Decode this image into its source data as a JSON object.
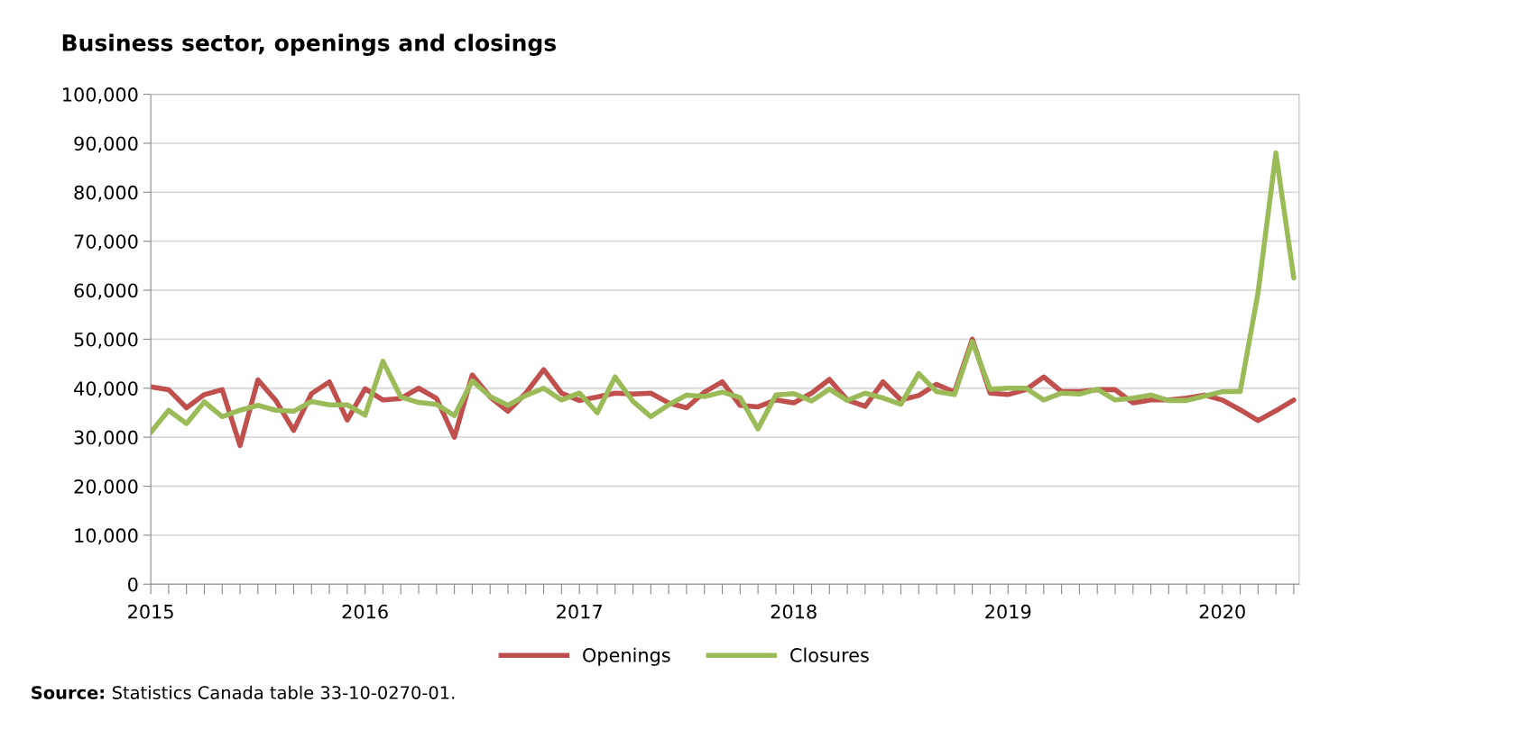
{
  "chart_data": {
    "type": "line",
    "title": "Business sector, openings and closings",
    "categories": [
      "2015",
      null,
      null,
      null,
      null,
      null,
      null,
      null,
      null,
      null,
      null,
      null,
      "2016",
      null,
      null,
      null,
      null,
      null,
      null,
      null,
      null,
      null,
      null,
      null,
      "2017",
      null,
      null,
      null,
      null,
      null,
      null,
      null,
      null,
      null,
      null,
      null,
      "2018",
      null,
      null,
      null,
      null,
      null,
      null,
      null,
      null,
      null,
      null,
      null,
      "2019",
      null,
      null,
      null,
      null,
      null,
      null,
      null,
      null,
      null,
      null,
      null,
      "2020",
      null,
      null,
      null,
      null
    ],
    "series": [
      {
        "name": "Openings",
        "color": "#c0504d",
        "values": [
          40300,
          39700,
          36000,
          38700,
          39700,
          28300,
          41700,
          37500,
          31400,
          38900,
          41300,
          33500,
          39900,
          37600,
          37900,
          40000,
          37900,
          30000,
          42700,
          38200,
          35300,
          39000,
          43800,
          39000,
          37500,
          38200,
          39000,
          38800,
          39000,
          37000,
          36000,
          39200,
          41300,
          36500,
          36200,
          37600,
          37000,
          39000,
          41800,
          37600,
          36300,
          41300,
          37600,
          38500,
          40800,
          39200,
          50000,
          39000,
          38700,
          39700,
          42300,
          39300,
          39300,
          39700,
          39700,
          37000,
          37600,
          37600,
          38000,
          38600,
          37600,
          35600,
          33400,
          35400,
          37600
        ]
      },
      {
        "name": "Closures",
        "color": "#9bbb59",
        "values": [
          31000,
          35500,
          32800,
          37200,
          34200,
          35500,
          36500,
          35500,
          35300,
          37300,
          36600,
          36600,
          34500,
          45500,
          38200,
          37100,
          36700,
          34400,
          41500,
          38300,
          36500,
          38500,
          40000,
          37600,
          39000,
          35000,
          42300,
          37300,
          34200,
          36600,
          38600,
          38300,
          39200,
          38100,
          31700,
          38600,
          38900,
          37400,
          39800,
          37500,
          39000,
          38000,
          36700,
          43000,
          39300,
          38700,
          49500,
          39800,
          40000,
          40000,
          37600,
          39000,
          38800,
          39800,
          37600,
          38000,
          38600,
          37500,
          37500,
          38400,
          39300,
          39300,
          59500,
          88000,
          62500
        ]
      }
    ],
    "ylim": [
      0,
      100000
    ],
    "yticks": [
      0,
      {
        "value": 10000,
        "label": "10,000"
      },
      {
        "value": 20000,
        "label": "20,000"
      },
      {
        "value": 30000,
        "label": "30,000"
      },
      {
        "value": 40000,
        "label": "40,000"
      },
      {
        "value": 50000,
        "label": "50,000"
      },
      {
        "value": 60000,
        "label": "60,000"
      },
      {
        "value": 70000,
        "label": "70,000"
      },
      {
        "value": 80000,
        "label": "80,000"
      },
      {
        "value": 90000,
        "label": "90,000"
      },
      {
        "value": 100000,
        "label": "100,000"
      }
    ],
    "grid": "y",
    "legend": "bottom",
    "marker": "none",
    "line_style": "solid",
    "annotations": [
      "Source: Statistics Canada table 33-10-0270-01."
    ]
  }
}
